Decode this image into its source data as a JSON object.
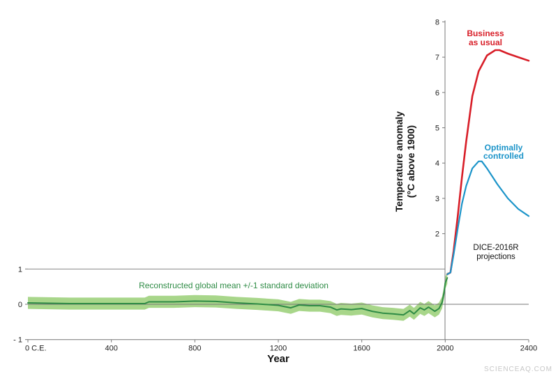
{
  "chart_data": {
    "type": "line",
    "xlabel": "Year",
    "ylabel_lines": [
      "Temperature anomaly",
      "(°C above 1900)"
    ],
    "xlim": [
      0,
      2400
    ],
    "ylim": [
      -1,
      8
    ],
    "x_ticks": [
      {
        "value": 0,
        "label": "0 C.E."
      },
      {
        "value": 400,
        "label": "400"
      },
      {
        "value": 800,
        "label": "800"
      },
      {
        "value": 1200,
        "label": "1200"
      },
      {
        "value": 1600,
        "label": "1600"
      },
      {
        "value": 2000,
        "label": "2000"
      },
      {
        "value": 2400,
        "label": "2400"
      }
    ],
    "y_ticks_left": [
      {
        "value": 1,
        "label": "1"
      },
      {
        "value": 0,
        "label": "0"
      },
      {
        "value": -1,
        "label": "- 1"
      }
    ],
    "y_ticks_right": [
      {
        "value": 2,
        "label": "2"
      },
      {
        "value": 3,
        "label": "3"
      },
      {
        "value": 4,
        "label": "4"
      },
      {
        "value": 5,
        "label": "5"
      },
      {
        "value": 6,
        "label": "6"
      },
      {
        "value": 7,
        "label": "7"
      },
      {
        "value": 8,
        "label": "8"
      }
    ],
    "series": [
      {
        "name": "Reconstructed global mean +/-1 standard deviation",
        "color": "#2e8b45",
        "band_color": "#a8d68a",
        "band_sd": 0.17,
        "x": [
          0,
          100,
          200,
          300,
          400,
          500,
          560,
          580,
          700,
          800,
          900,
          1000,
          1100,
          1200,
          1260,
          1300,
          1350,
          1400,
          1450,
          1480,
          1500,
          1550,
          1600,
          1650,
          1700,
          1750,
          1800,
          1830,
          1850,
          1880,
          1900,
          1920,
          1950,
          1970,
          1985,
          1995,
          2000,
          2010
        ],
        "values": [
          0.04,
          0.03,
          0.02,
          0.02,
          0.02,
          0.02,
          0.02,
          0.07,
          0.07,
          0.09,
          0.08,
          0.04,
          0.01,
          -0.03,
          -0.1,
          -0.02,
          -0.04,
          -0.04,
          -0.08,
          -0.16,
          -0.13,
          -0.15,
          -0.12,
          -0.2,
          -0.25,
          -0.27,
          -0.3,
          -0.18,
          -0.27,
          -0.1,
          -0.16,
          -0.08,
          -0.2,
          -0.12,
          0.05,
          0.35,
          0.6,
          0.75
        ]
      },
      {
        "name": "Business as usual",
        "label_lines": [
          "Business",
          "as usual"
        ],
        "color": "#d81e28",
        "x": [
          2010,
          2025,
          2040,
          2060,
          2080,
          2100,
          2130,
          2160,
          2200,
          2240,
          2260,
          2300,
          2350,
          2400
        ],
        "values": [
          0.85,
          0.9,
          1.5,
          2.5,
          3.6,
          4.6,
          5.9,
          6.6,
          7.05,
          7.2,
          7.2,
          7.1,
          7.0,
          6.9
        ]
      },
      {
        "name": "Optimally controlled",
        "label_lines": [
          "Optimally",
          "controlled"
        ],
        "color": "#1b94c9",
        "x": [
          2010,
          2025,
          2040,
          2060,
          2080,
          2100,
          2130,
          2160,
          2175,
          2200,
          2250,
          2300,
          2350,
          2400
        ],
        "values": [
          0.85,
          0.9,
          1.4,
          2.15,
          2.85,
          3.35,
          3.85,
          4.05,
          4.05,
          3.85,
          3.4,
          3.0,
          2.7,
          2.5
        ]
      }
    ],
    "annotations": {
      "projections": [
        "DICE-2016R",
        "projections"
      ]
    }
  },
  "watermark": "SCIENCEAQ.COM",
  "colors": {
    "axis": "#777777",
    "grid": "#888888"
  }
}
